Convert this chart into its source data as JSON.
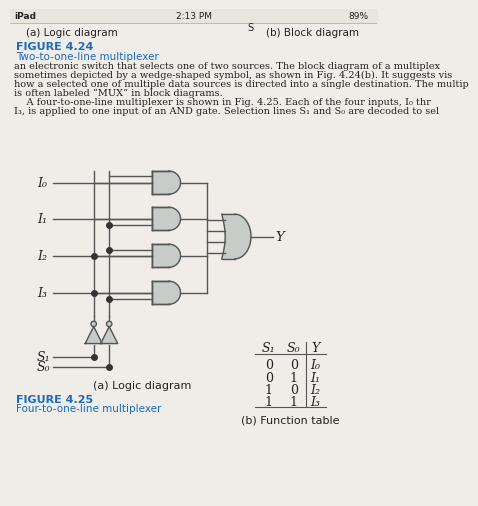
{
  "bg_color": "#f0ede8",
  "status_bar_left": "iPad",
  "status_bar_center": "2:13 PM",
  "status_bar_right": "89%",
  "top_label_left": "(a) Logic diagram",
  "top_label_right": "(b) Block diagram",
  "fig424_label": "FIGURE 4.24",
  "fig424_caption": "Two-to-one-line multiplexer",
  "body_lines": [
    "an electronic switch that selects one of two sources. The block diagram of a multiplex",
    "sometimes depicted by a wedge-shaped symbol, as shown in Fig. 4.24(b). It suggests vis",
    "how a selected one of multiple data sources is directed into a single destination. The multip",
    "is often labeled “MUX” in block diagrams.",
    "    A four-to-one-line multiplexer is shown in Fig. 4.25. Each of the four inputs, I₀ thr",
    "I₃, is applied to one input of an AND gate. Selection lines S₁ and S₀ are decoded to sel"
  ],
  "inputs": [
    "I₀",
    "I₁",
    "I₂",
    "I₃"
  ],
  "selections": [
    "S₁",
    "S₀"
  ],
  "output_label": "Y",
  "table_headers": [
    "S₁",
    "S₀",
    "Y"
  ],
  "table_rows": [
    [
      "0",
      "0",
      "I₀"
    ],
    [
      "0",
      "1",
      "I₁"
    ],
    [
      "1",
      "0",
      "I₂"
    ],
    [
      "1",
      "1",
      "I₃"
    ]
  ],
  "bottom_left_label": "(a) Logic diagram",
  "bottom_right_label": "(b) Function table",
  "fig425_label": "FIGURE 4.25",
  "fig425_caption": "Four-to-one-line multiplexer",
  "gate_fill": "#c8ccc8",
  "gate_edge": "#555555",
  "line_color": "#555555",
  "text_color": "#222222",
  "blue_color": "#1a6abf",
  "dot_color": "#333333"
}
